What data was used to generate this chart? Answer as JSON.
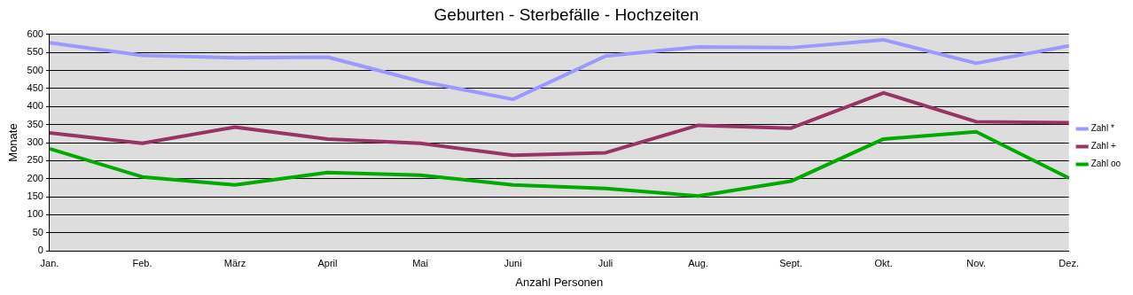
{
  "chart_data": {
    "type": "line",
    "title": "Geburten - Sterbefälle - Hochzeiten",
    "xlabel": "Anzahl Personen",
    "ylabel": "Monate",
    "categories": [
      "Jan.",
      "Feb.",
      "März",
      "April",
      "Mai",
      "Juni",
      "Juli",
      "Aug.",
      "Sept.",
      "Okt.",
      "Nov.",
      "Dez."
    ],
    "series": [
      {
        "name": "Zahl *",
        "color": "#9999ff",
        "values": [
          577,
          542,
          535,
          537,
          470,
          420,
          540,
          565,
          563,
          585,
          520,
          568
        ]
      },
      {
        "name": "Zahl +",
        "color": "#993366",
        "values": [
          327,
          298,
          343,
          310,
          298,
          265,
          272,
          348,
          340,
          438,
          358,
          355
        ]
      },
      {
        "name": "Zahl oo",
        "color": "#00aa00",
        "values": [
          283,
          205,
          183,
          217,
          210,
          183,
          173,
          152,
          193,
          310,
          330,
          202
        ]
      }
    ],
    "ylim": [
      0,
      600
    ],
    "yticks": [
      0,
      50,
      100,
      150,
      200,
      250,
      300,
      350,
      400,
      450,
      500,
      550,
      600
    ],
    "grid": "y",
    "legend": "right",
    "marker": "none",
    "line_style": "solid"
  }
}
